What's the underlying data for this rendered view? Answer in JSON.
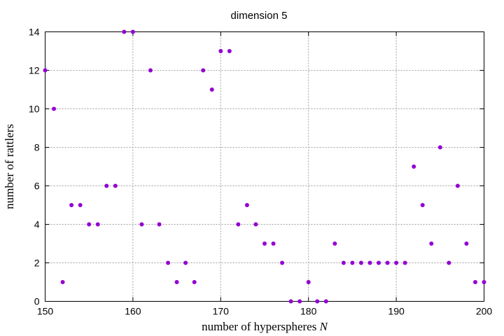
{
  "chart_data": {
    "type": "scatter",
    "title": "dimension 5",
    "xlabel": "number of hyperspheres",
    "xlabel_var": "N",
    "ylabel": "number of rattlers",
    "xlim": [
      150,
      200
    ],
    "ylim": [
      0,
      14
    ],
    "xticks": [
      150,
      160,
      170,
      180,
      190,
      200
    ],
    "yticks": [
      0,
      2,
      4,
      6,
      8,
      10,
      12,
      14
    ],
    "grid": true,
    "marker_color": "#9400d3",
    "series": [
      {
        "x": [
          150,
          151,
          152,
          153,
          154,
          155,
          156,
          157,
          158,
          159,
          160,
          161,
          162,
          163,
          164,
          165,
          166,
          167,
          168,
          169,
          170,
          171,
          172,
          173,
          174,
          175,
          176,
          177,
          178,
          179,
          180,
          181,
          182,
          183,
          184,
          185,
          186,
          187,
          188,
          189,
          190,
          191,
          192,
          193,
          194,
          195,
          196,
          197,
          198,
          199,
          200
        ],
        "y": [
          12,
          10,
          1,
          5,
          5,
          4,
          4,
          6,
          6,
          14,
          14,
          4,
          12,
          4,
          2,
          1,
          2,
          1,
          12,
          11,
          13,
          13,
          4,
          5,
          4,
          3,
          3,
          2,
          0,
          0,
          1,
          0,
          0,
          3,
          2,
          2,
          2,
          2,
          2,
          2,
          2,
          2,
          7,
          5,
          3,
          8,
          2,
          6,
          3,
          1,
          1
        ]
      }
    ]
  }
}
